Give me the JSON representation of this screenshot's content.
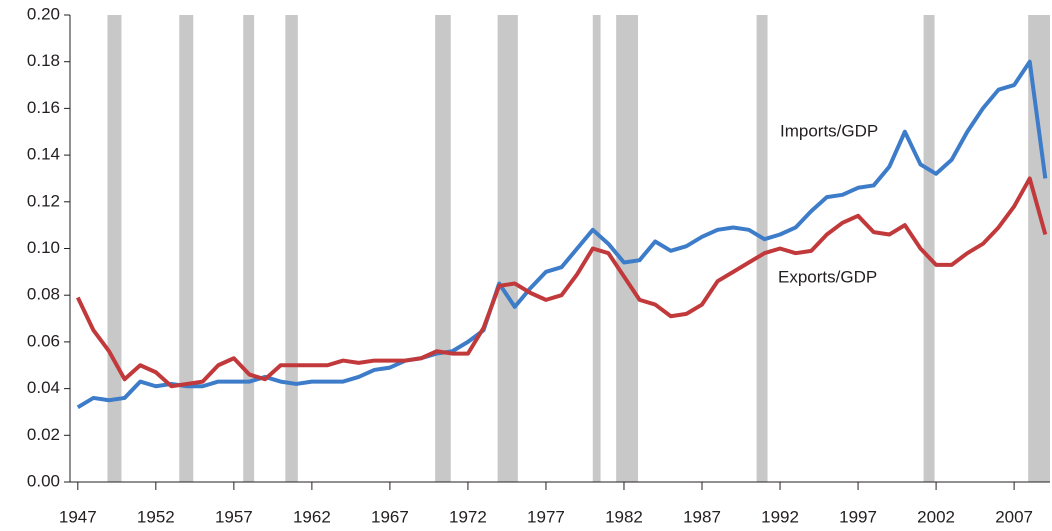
{
  "chart_data": {
    "type": "line",
    "x": [
      1947,
      1948,
      1949,
      1950,
      1951,
      1952,
      1953,
      1954,
      1955,
      1956,
      1957,
      1958,
      1959,
      1960,
      1961,
      1962,
      1963,
      1964,
      1965,
      1966,
      1967,
      1968,
      1969,
      1970,
      1971,
      1972,
      1973,
      1974,
      1975,
      1976,
      1977,
      1978,
      1979,
      1980,
      1981,
      1982,
      1983,
      1984,
      1985,
      1986,
      1987,
      1988,
      1989,
      1990,
      1991,
      1992,
      1993,
      1994,
      1995,
      1996,
      1997,
      1998,
      1999,
      2000,
      2001,
      2002,
      2003,
      2004,
      2005,
      2006,
      2007,
      2008,
      2009
    ],
    "series": [
      {
        "name": "Imports/GDP",
        "color": "#3d7cc9",
        "values": [
          0.032,
          0.036,
          0.035,
          0.036,
          0.043,
          0.041,
          0.042,
          0.041,
          0.041,
          0.043,
          0.043,
          0.043,
          0.045,
          0.043,
          0.042,
          0.043,
          0.043,
          0.043,
          0.045,
          0.048,
          0.049,
          0.052,
          0.053,
          0.055,
          0.056,
          0.06,
          0.065,
          0.085,
          0.075,
          0.083,
          0.09,
          0.092,
          0.1,
          0.108,
          0.102,
          0.094,
          0.095,
          0.103,
          0.099,
          0.101,
          0.105,
          0.108,
          0.109,
          0.108,
          0.104,
          0.106,
          0.109,
          0.116,
          0.122,
          0.123,
          0.126,
          0.127,
          0.135,
          0.15,
          0.136,
          0.132,
          0.138,
          0.15,
          0.16,
          0.168,
          0.17,
          0.18,
          0.13
        ]
      },
      {
        "name": "Exports/GDP",
        "color": "#c1393b",
        "values": [
          0.079,
          0.065,
          0.056,
          0.044,
          0.05,
          0.047,
          0.041,
          0.042,
          0.043,
          0.05,
          0.053,
          0.046,
          0.044,
          0.05,
          0.05,
          0.05,
          0.05,
          0.052,
          0.051,
          0.052,
          0.052,
          0.052,
          0.053,
          0.056,
          0.055,
          0.055,
          0.066,
          0.084,
          0.085,
          0.081,
          0.078,
          0.08,
          0.089,
          0.1,
          0.098,
          0.088,
          0.078,
          0.076,
          0.071,
          0.072,
          0.076,
          0.086,
          0.09,
          0.094,
          0.098,
          0.1,
          0.098,
          0.099,
          0.106,
          0.111,
          0.114,
          0.107,
          0.106,
          0.11,
          0.1,
          0.093,
          0.093,
          0.098,
          0.102,
          0.109,
          0.118,
          0.13,
          0.106
        ]
      }
    ],
    "shaded_periods": [
      [
        1948.9,
        1949.8
      ],
      [
        1953.5,
        1954.4
      ],
      [
        1957.6,
        1958.3
      ],
      [
        1960.3,
        1961.1
      ],
      [
        1969.9,
        1970.9
      ],
      [
        1973.9,
        1975.2
      ],
      [
        1980.0,
        1980.5
      ],
      [
        1981.5,
        1982.9
      ],
      [
        1990.5,
        1991.2
      ],
      [
        2001.2,
        2001.9
      ],
      [
        2007.9,
        2009.5
      ]
    ],
    "shade_color": "#c8c8c8",
    "xlim": [
      1946.5,
      2009.3
    ],
    "xticks": [
      1947,
      1952,
      1957,
      1962,
      1967,
      1972,
      1977,
      1982,
      1987,
      1992,
      1997,
      2002,
      2007
    ],
    "ylim": [
      0,
      0.2
    ],
    "yticks": [
      {
        "value": 0,
        "label": "0.00"
      },
      0.02,
      0.04,
      0.06,
      0.08,
      {
        "value": 0.1,
        "label": "0.10"
      },
      0.12,
      0.14,
      0.16,
      0.18,
      {
        "value": 0.2,
        "label": "0.20"
      }
    ],
    "grid": false
  }
}
